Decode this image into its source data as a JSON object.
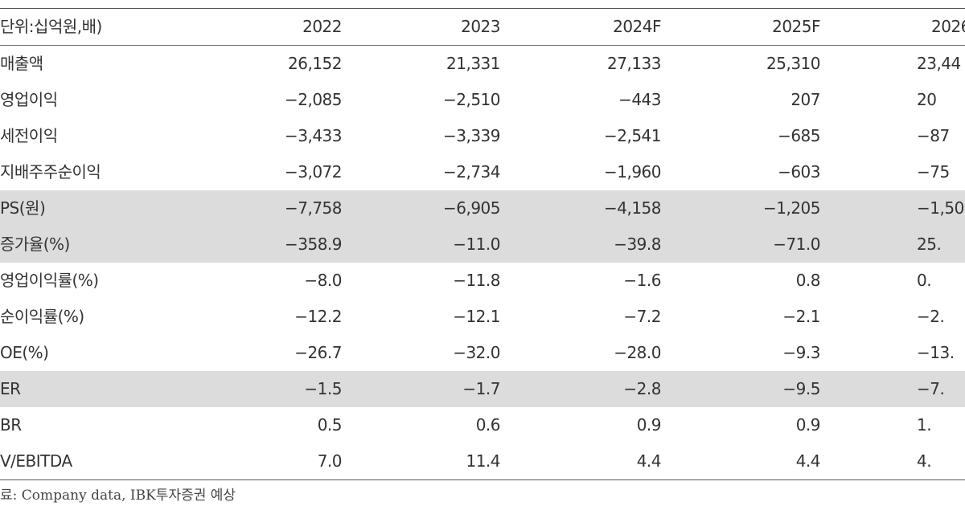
{
  "table": {
    "header": [
      "단위:십억원,배)",
      "2022",
      "2023",
      "2024F",
      "2025F",
      "2026"
    ],
    "shaded_rows": [
      4,
      5,
      9
    ],
    "rows": [
      [
        "매출액",
        "26,152",
        "21,331",
        "27,133",
        "25,310",
        "23,44"
      ],
      [
        "영업이익",
        "−2,085",
        "−2,510",
        "−443",
        "207",
        "20"
      ],
      [
        "세전이익",
        "−3,433",
        "−3,339",
        "−2,541",
        "−685",
        "−87"
      ],
      [
        "지배주주순이익",
        "−3,072",
        "−2,734",
        "−1,960",
        "−603",
        "−75"
      ],
      [
        "PS(원)",
        "−7,758",
        "−6,905",
        "−4,158",
        "−1,205",
        "−1,50"
      ],
      [
        "증가율(%)",
        "−358.9",
        "−11.0",
        "−39.8",
        "−71.0",
        "25."
      ],
      [
        "영업이익률(%)",
        "−8.0",
        "−11.8",
        "−1.6",
        "0.8",
        "0."
      ],
      [
        "순이익률(%)",
        "−12.2",
        "−12.1",
        "−7.2",
        "−2.1",
        "−2."
      ],
      [
        "OE(%)",
        "−26.7",
        "−32.0",
        "−28.0",
        "−9.3",
        "−13."
      ],
      [
        "ER",
        "−1.5",
        "−1.7",
        "−2.8",
        "−9.5",
        "−7."
      ],
      [
        "BR",
        "0.5",
        "0.6",
        "0.9",
        "0.9",
        "1."
      ],
      [
        "V/EBITDA",
        "7.0",
        "11.4",
        "4.4",
        "4.4",
        "4."
      ]
    ]
  },
  "source": "료: Company data, IBK투자증권 예상"
}
